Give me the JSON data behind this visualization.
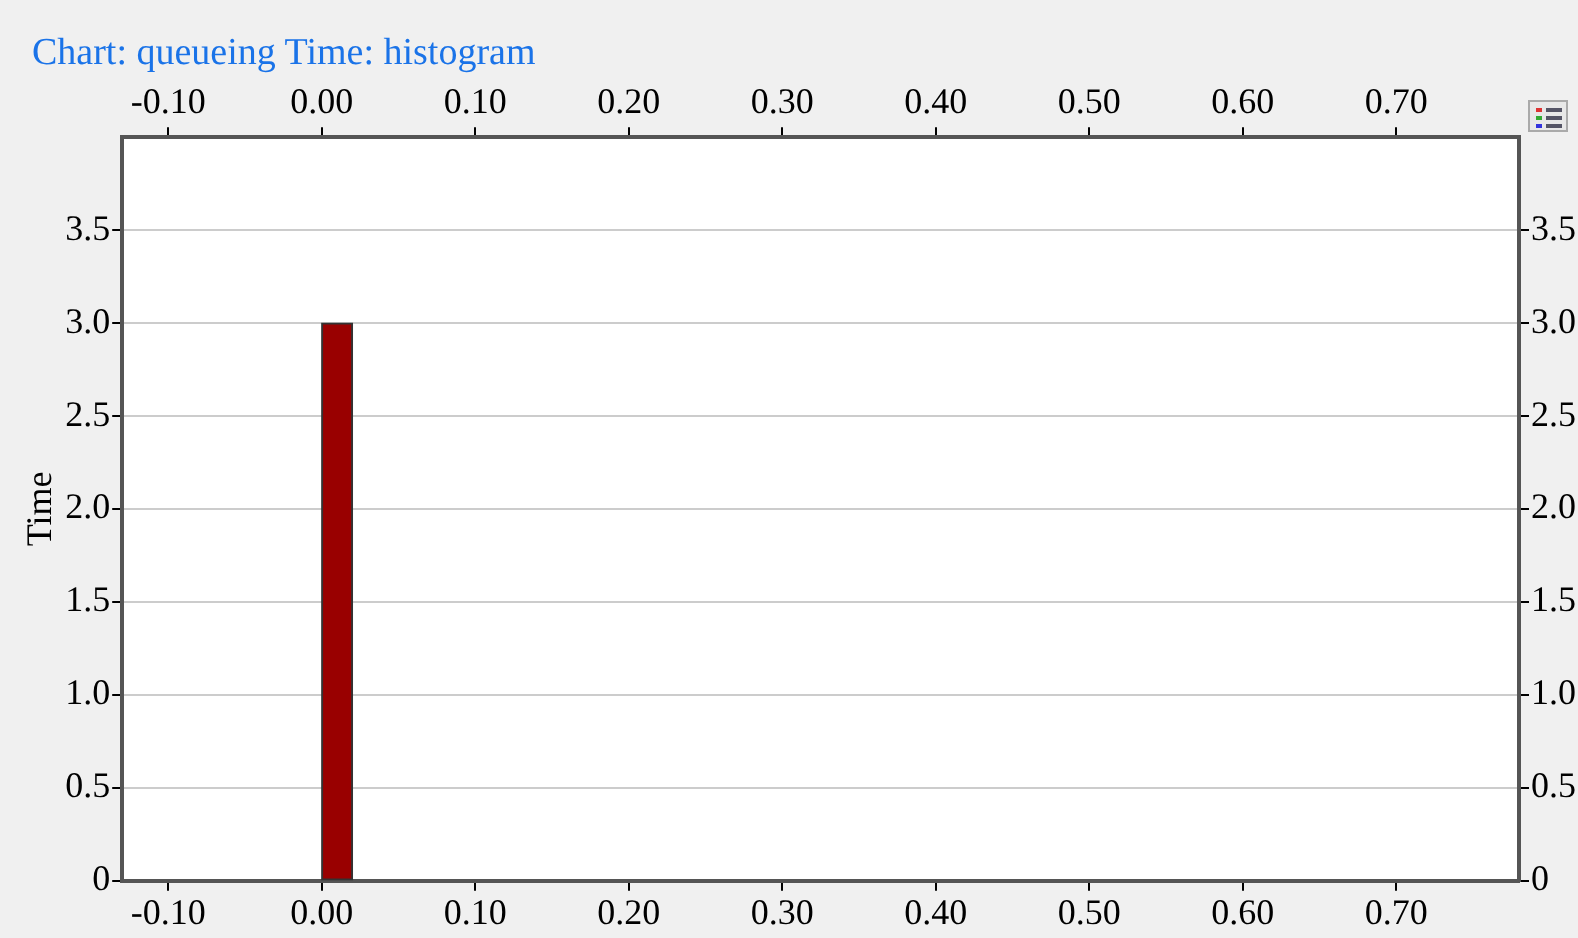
{
  "chart_data": {
    "type": "histogram",
    "title": "Chart: queueing Time: histogram",
    "ylabel": "Time",
    "bins": [
      0,
      0.02
    ],
    "values": [
      3.0
    ],
    "color": "#990000",
    "xlim": [
      -0.13,
      0.78
    ],
    "xticks": [
      {
        "value": -0.1,
        "label": "-0.10"
      },
      {
        "value": 0,
        "label": "0.00"
      },
      {
        "value": 0.1,
        "label": "0.10"
      },
      {
        "value": 0.2,
        "label": "0.20"
      },
      {
        "value": 0.3,
        "label": "0.30"
      },
      {
        "value": 0.4,
        "label": "0.40"
      },
      {
        "value": 0.5,
        "label": "0.50"
      },
      {
        "value": 0.6,
        "label": "0.60"
      },
      {
        "value": 0.7,
        "label": "0.70"
      }
    ],
    "x2lim": [
      -0.13,
      0.78
    ],
    "x2ticks": [
      {
        "value": -0.1,
        "label": "-0.10"
      },
      {
        "value": 0,
        "label": "0.00"
      },
      {
        "value": 0.1,
        "label": "0.10"
      },
      {
        "value": 0.2,
        "label": "0.20"
      },
      {
        "value": 0.3,
        "label": "0.30"
      },
      {
        "value": 0.4,
        "label": "0.40"
      },
      {
        "value": 0.5,
        "label": "0.50"
      },
      {
        "value": 0.6,
        "label": "0.60"
      },
      {
        "value": 0.7,
        "label": "0.70"
      }
    ],
    "ylim": [
      0,
      4.0
    ],
    "yticks": [
      0,
      0.5,
      {
        "value": 1,
        "label": "1.0"
      },
      1.5,
      {
        "value": 2,
        "label": "2.0"
      },
      2.5,
      {
        "value": 3,
        "label": "3.0"
      },
      3.5
    ],
    "y2lim": [
      0,
      4.0
    ],
    "y2ticks": [
      0,
      0.5,
      {
        "value": 1,
        "label": "1.0"
      },
      1.5,
      {
        "value": 2,
        "label": "2.0"
      },
      2.5,
      {
        "value": 3,
        "label": "3.0"
      },
      3.5
    ],
    "grid": "y",
    "legend": false
  }
}
